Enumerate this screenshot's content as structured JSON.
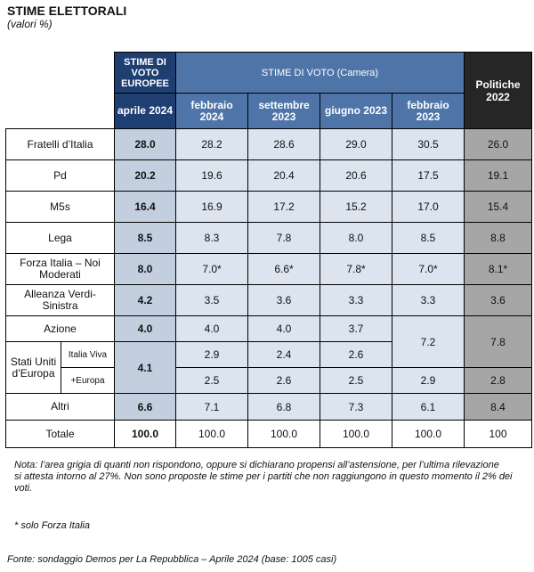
{
  "title": "STIME ELETTORALI",
  "subtitle": "(valori %)",
  "headers": {
    "euro_group": "STIME DI VOTO EUROPEE",
    "camera_group": "STIME DI VOTO (Camera)",
    "politiche": "Politiche 2022",
    "dates": [
      "aprile 2024",
      "febbraio 2024",
      "settembre 2023",
      "giugno 2023",
      "febbraio 2023"
    ]
  },
  "rows": [
    {
      "label": "Fratelli d’Italia",
      "values": [
        "28.0",
        "28.2",
        "28.6",
        "29.0",
        "30.5",
        "26.0"
      ]
    },
    {
      "label": "Pd",
      "values": [
        "20.2",
        "19.6",
        "20.4",
        "20.6",
        "17.5",
        "19.1"
      ]
    },
    {
      "label": "M5s",
      "values": [
        "16.4",
        "16.9",
        "17.2",
        "15.2",
        "17.0",
        "15.4"
      ]
    },
    {
      "label": "Lega",
      "values": [
        "8.5",
        "8.3",
        "7.8",
        "8.0",
        "8.5",
        "8.8"
      ]
    },
    {
      "label": "Forza Italia – Noi Moderati",
      "values": [
        "8.0",
        "7.0*",
        "6.6*",
        "7.8*",
        "7.0*",
        "8.1*"
      ]
    },
    {
      "label": "Alleanza Verdi-Sinistra",
      "values": [
        "4.2",
        "3.5",
        "3.6",
        "3.3",
        "3.3",
        "3.6"
      ]
    }
  ],
  "azione": {
    "label": "Azione",
    "values": [
      "4.0",
      "4.0",
      "4.0",
      "3.7"
    ]
  },
  "merged_feb23": "7.2",
  "merged_pol": "7.8",
  "stati_uniti": {
    "label": "Stati Uniti d’Europa",
    "euro_value": "4.1",
    "italia_viva": {
      "label": "Italia Viva",
      "values": [
        "2.9",
        "2.4",
        "2.6"
      ]
    },
    "piu_europa": {
      "label": "+Europa",
      "values": [
        "2.5",
        "2.6",
        "2.5",
        "2.9",
        "2.8"
      ]
    }
  },
  "altri": {
    "label": "Altri",
    "values": [
      "6.6",
      "7.1",
      "6.8",
      "7.3",
      "6.1",
      "8.4"
    ]
  },
  "totale": {
    "label": "Totale",
    "values": [
      "100.0",
      "100.0",
      "100.0",
      "100.0",
      "100.0",
      "100"
    ]
  },
  "note_line1": "Nota: l’area grigia di quanti non rispondono, oppure si dichiarano propensi all’astensione, per l’ultima rilevazione",
  "note_line2": "si attesta intorno al 27%. Non sono proposte le stime per i partiti che non raggiungono in questo momento il 2% dei voti.",
  "footnote": "* solo Forza Italia",
  "source": "Fonte: sondaggio Demos per La Repubblica – Aprile 2024 (base: 1005 casi)"
}
